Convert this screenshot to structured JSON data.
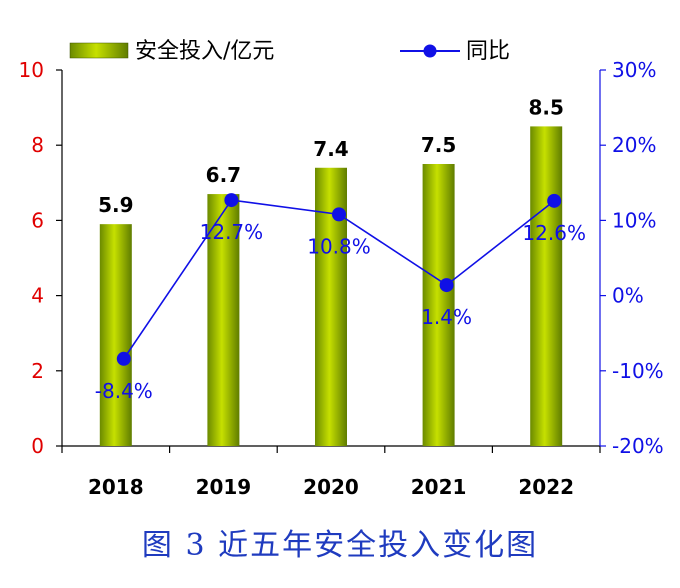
{
  "chart_data": {
    "type": "bar",
    "categories": [
      "2018",
      "2019",
      "2020",
      "2021",
      "2022"
    ],
    "series": [
      {
        "name": "安全投入/亿元",
        "type": "bar",
        "axis": "left",
        "values": [
          5.9,
          6.7,
          7.4,
          7.5,
          8.5
        ],
        "color": "#8fae00"
      },
      {
        "name": "同比",
        "type": "line",
        "axis": "right",
        "values": [
          -8.4,
          12.7,
          10.8,
          1.4,
          12.6
        ],
        "color": "#1010e6"
      }
    ],
    "bar_labels": [
      "5.9",
      "6.7",
      "7.4",
      "7.5",
      "8.5"
    ],
    "line_labels": [
      "-8.4%",
      "12.7%",
      "10.8%",
      "1.4%",
      "12.6%"
    ],
    "y_left": {
      "ylim": [
        0,
        10
      ],
      "ticks": [
        "0",
        "2",
        "4",
        "6",
        "8",
        "10"
      ],
      "color": "#e00000"
    },
    "y_right": {
      "ylim": [
        -20,
        30
      ],
      "ticks": [
        "-20%",
        "-10%",
        "0%",
        "10%",
        "20%",
        "30%"
      ],
      "color": "#1010e6"
    },
    "legend_position": "top",
    "grid": false
  },
  "caption": "图 3  近五年安全投入变化图"
}
